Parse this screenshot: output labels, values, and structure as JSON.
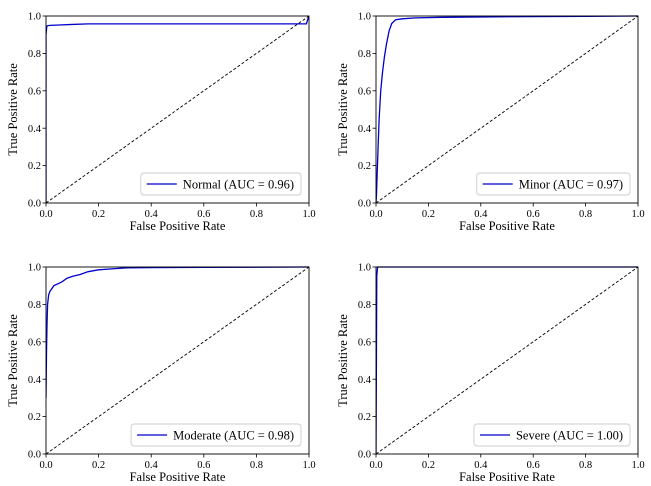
{
  "chart_data": [
    {
      "type": "line",
      "xlabel": "False Positive Rate",
      "ylabel": "True Positive Rate",
      "xlim": [
        0,
        1
      ],
      "ylim": [
        0,
        1
      ],
      "xticks": [
        "0.0",
        "0.2",
        "0.4",
        "0.6",
        "0.8",
        "1.0"
      ],
      "yticks": [
        "0.0",
        "0.2",
        "0.4",
        "0.6",
        "0.8",
        "1.0"
      ],
      "legend_position": "lower-right",
      "grid": false,
      "series": [
        {
          "name": "Normal (AUC = 0.96)",
          "color": "#0000cc",
          "x": [
            0,
            0,
            0.003,
            0.006,
            0.015,
            0.05,
            0.1,
            0.16,
            0.4,
            0.7,
            0.99,
            0.995,
            1.0
          ],
          "y": [
            0,
            0.9,
            0.945,
            0.948,
            0.95,
            0.952,
            0.955,
            0.958,
            0.958,
            0.958,
            0.958,
            0.98,
            1.0
          ]
        },
        {
          "name": "",
          "style": "dashed",
          "color": "#000000",
          "x": [
            0,
            1
          ],
          "y": [
            0,
            1
          ]
        }
      ]
    },
    {
      "type": "line",
      "xlabel": "False Positive Rate",
      "ylabel": "True Positive Rate",
      "xlim": [
        0,
        1
      ],
      "ylim": [
        0,
        1
      ],
      "xticks": [
        "0.0",
        "0.2",
        "0.4",
        "0.6",
        "0.8",
        "1.0"
      ],
      "yticks": [
        "0.0",
        "0.2",
        "0.4",
        "0.6",
        "0.8",
        "1.0"
      ],
      "legend_position": "lower-right",
      "grid": false,
      "series": [
        {
          "name": "Minor (AUC = 0.97)",
          "color": "#0000cc",
          "x": [
            0,
            0.002,
            0.005,
            0.008,
            0.012,
            0.018,
            0.025,
            0.032,
            0.04,
            0.05,
            0.06,
            0.075,
            0.1,
            0.15,
            0.25,
            0.4,
            0.6,
            0.8,
            1.0
          ],
          "y": [
            0,
            0.05,
            0.18,
            0.3,
            0.45,
            0.6,
            0.7,
            0.78,
            0.85,
            0.92,
            0.96,
            0.98,
            0.985,
            0.99,
            0.993,
            0.995,
            0.997,
            0.998,
            1.0
          ]
        },
        {
          "name": "",
          "style": "dashed",
          "color": "#000000",
          "x": [
            0,
            1
          ],
          "y": [
            0,
            1
          ]
        }
      ]
    },
    {
      "type": "line",
      "xlabel": "False Positive Rate",
      "ylabel": "True Positive Rate",
      "xlim": [
        0,
        1
      ],
      "ylim": [
        0,
        1
      ],
      "xticks": [
        "0.0",
        "0.2",
        "0.4",
        "0.6",
        "0.8",
        "1.0"
      ],
      "yticks": [
        "0.0",
        "0.2",
        "0.4",
        "0.6",
        "0.8",
        "1.0"
      ],
      "legend_position": "lower-right",
      "grid": false,
      "series": [
        {
          "name": "Moderate (AUC = 0.98)",
          "color": "#0000cc",
          "x": [
            0,
            0.002,
            0.004,
            0.006,
            0.01,
            0.015,
            0.02,
            0.03,
            0.045,
            0.06,
            0.08,
            0.1,
            0.13,
            0.16,
            0.2,
            0.25,
            0.3,
            0.4,
            0.6,
            0.8,
            1.0
          ],
          "y": [
            0.3,
            0.55,
            0.7,
            0.8,
            0.85,
            0.87,
            0.88,
            0.9,
            0.91,
            0.92,
            0.94,
            0.95,
            0.96,
            0.975,
            0.985,
            0.99,
            0.995,
            0.997,
            0.998,
            0.999,
            1.0
          ]
        },
        {
          "name": "",
          "style": "dashed",
          "color": "#000000",
          "x": [
            0,
            1
          ],
          "y": [
            0,
            1
          ]
        }
      ]
    },
    {
      "type": "line",
      "xlabel": "False Positive Rate",
      "ylabel": "True Positive Rate",
      "xlim": [
        0,
        1
      ],
      "ylim": [
        0,
        1
      ],
      "xticks": [
        "0.0",
        "0.2",
        "0.4",
        "0.6",
        "0.8",
        "1.0"
      ],
      "yticks": [
        "0.0",
        "0.2",
        "0.4",
        "0.6",
        "0.8",
        "1.0"
      ],
      "legend_position": "lower-right",
      "grid": false,
      "series": [
        {
          "name": "Severe (AUC = 1.00)",
          "color": "#0000cc",
          "x": [
            0,
            0.003,
            0.006,
            0.2,
            0.5,
            1.0
          ],
          "y": [
            0,
            0.95,
            1.0,
            1.0,
            1.0,
            1.0
          ]
        },
        {
          "name": "",
          "style": "dashed",
          "color": "#000000",
          "x": [
            0,
            1
          ],
          "y": [
            0,
            1
          ]
        }
      ]
    }
  ]
}
